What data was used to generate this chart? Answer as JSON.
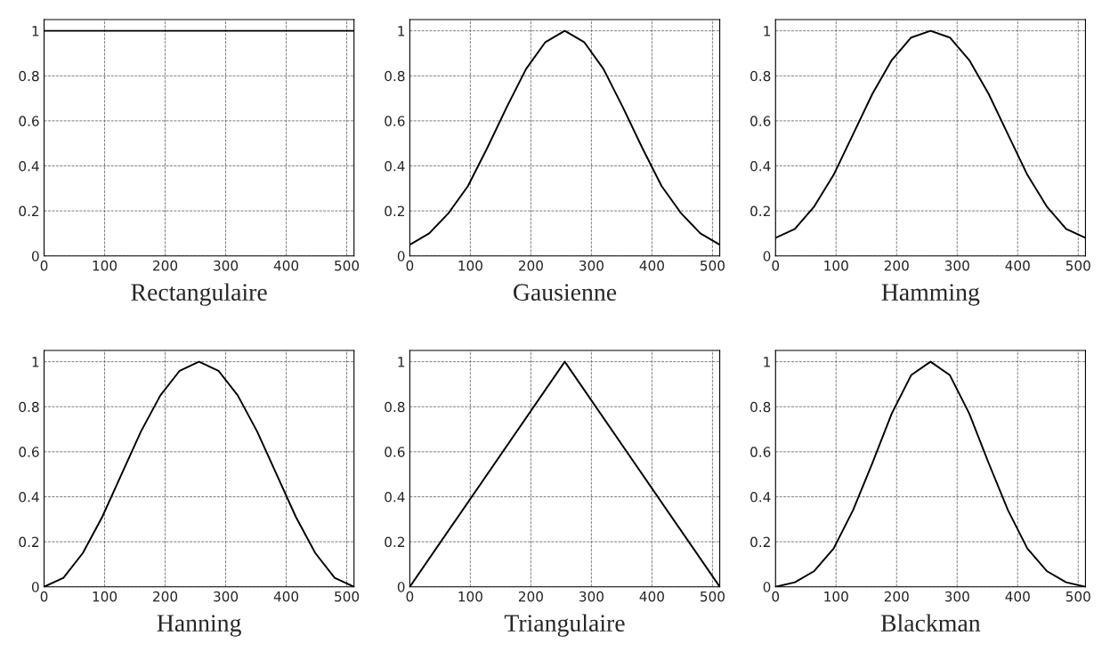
{
  "chart_data": [
    {
      "type": "line",
      "xlabel": "Rectangulaire",
      "x": [
        0,
        512
      ],
      "series": [
        {
          "color": "#000000",
          "values": [
            1,
            1
          ]
        }
      ],
      "xlim": [
        0,
        512
      ],
      "ylim": [
        0,
        1.05
      ],
      "xticks": [
        0,
        100,
        200,
        300,
        400,
        500
      ],
      "yticks": [
        0,
        0.2,
        0.4,
        0.6,
        0.8,
        1
      ],
      "grid": true
    },
    {
      "type": "line",
      "xlabel": "Gausienne",
      "x": [
        0,
        32,
        64,
        96,
        128,
        160,
        192,
        224,
        256,
        288,
        320,
        352,
        384,
        416,
        448,
        480,
        512
      ],
      "series": [
        {
          "color": "#000000",
          "values": [
            0.05,
            0.1,
            0.19,
            0.31,
            0.48,
            0.66,
            0.83,
            0.95,
            1,
            0.95,
            0.83,
            0.66,
            0.48,
            0.31,
            0.19,
            0.1,
            0.05
          ]
        }
      ],
      "xlim": [
        0,
        512
      ],
      "ylim": [
        0,
        1.05
      ],
      "xticks": [
        0,
        100,
        200,
        300,
        400,
        500
      ],
      "yticks": [
        0,
        0.2,
        0.4,
        0.6,
        0.8,
        1
      ],
      "grid": true
    },
    {
      "type": "line",
      "xlabel": "Hamming",
      "x": [
        0,
        32,
        64,
        96,
        128,
        160,
        192,
        224,
        256,
        288,
        320,
        352,
        384,
        416,
        448,
        480,
        512
      ],
      "series": [
        {
          "color": "#000000",
          "values": [
            0.08,
            0.12,
            0.22,
            0.36,
            0.54,
            0.72,
            0.87,
            0.97,
            1,
            0.97,
            0.87,
            0.72,
            0.54,
            0.36,
            0.22,
            0.12,
            0.08
          ]
        }
      ],
      "xlim": [
        0,
        512
      ],
      "ylim": [
        0,
        1.05
      ],
      "xticks": [
        0,
        100,
        200,
        300,
        400,
        500
      ],
      "yticks": [
        0,
        0.2,
        0.4,
        0.6,
        0.8,
        1
      ],
      "grid": true
    },
    {
      "type": "line",
      "xlabel": "Hanning",
      "x": [
        0,
        32,
        64,
        96,
        128,
        160,
        192,
        224,
        256,
        288,
        320,
        352,
        384,
        416,
        448,
        480,
        512
      ],
      "series": [
        {
          "color": "#000000",
          "values": [
            0,
            0.04,
            0.15,
            0.31,
            0.5,
            0.69,
            0.85,
            0.96,
            1,
            0.96,
            0.85,
            0.69,
            0.5,
            0.31,
            0.15,
            0.04,
            0
          ]
        }
      ],
      "xlim": [
        0,
        512
      ],
      "ylim": [
        0,
        1.05
      ],
      "xticks": [
        0,
        100,
        200,
        300,
        400,
        500
      ],
      "yticks": [
        0,
        0.2,
        0.4,
        0.6,
        0.8,
        1
      ],
      "grid": true
    },
    {
      "type": "line",
      "xlabel": "Triangulaire",
      "x": [
        0,
        256,
        512
      ],
      "series": [
        {
          "color": "#000000",
          "values": [
            0,
            1,
            0
          ]
        }
      ],
      "xlim": [
        0,
        512
      ],
      "ylim": [
        0,
        1.05
      ],
      "xticks": [
        0,
        100,
        200,
        300,
        400,
        500
      ],
      "yticks": [
        0,
        0.2,
        0.4,
        0.6,
        0.8,
        1
      ],
      "grid": true
    },
    {
      "type": "line",
      "xlabel": "Blackman",
      "x": [
        0,
        32,
        64,
        96,
        128,
        160,
        192,
        224,
        256,
        288,
        320,
        352,
        384,
        416,
        448,
        480,
        512
      ],
      "series": [
        {
          "color": "#000000",
          "values": [
            0,
            0.02,
            0.07,
            0.17,
            0.34,
            0.55,
            0.77,
            0.94,
            1,
            0.94,
            0.77,
            0.55,
            0.34,
            0.17,
            0.07,
            0.02,
            0
          ]
        }
      ],
      "xlim": [
        0,
        512
      ],
      "ylim": [
        0,
        1.05
      ],
      "xticks": [
        0,
        100,
        200,
        300,
        400,
        500
      ],
      "yticks": [
        0,
        0.2,
        0.4,
        0.6,
        0.8,
        1
      ],
      "grid": true
    }
  ]
}
